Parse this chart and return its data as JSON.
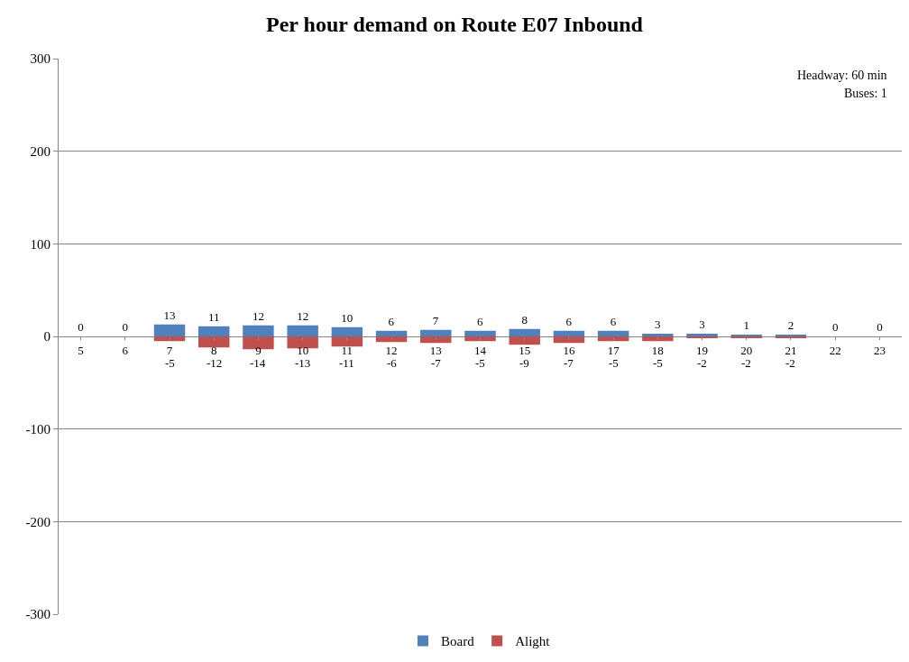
{
  "chart_data": {
    "type": "bar",
    "title": "Per hour demand on Route E07 Inbound",
    "categories": [
      "5",
      "6",
      "7",
      "8",
      "9",
      "10",
      "11",
      "12",
      "13",
      "14",
      "15",
      "16",
      "17",
      "18",
      "19",
      "20",
      "21",
      "22",
      "23"
    ],
    "series": [
      {
        "name": "Board",
        "color": "#4f81bd",
        "values": [
          0,
          0,
          13,
          11,
          12,
          12,
          10,
          6,
          7,
          6,
          8,
          6,
          6,
          3,
          3,
          1,
          2,
          0,
          0
        ],
        "value_labels": [
          "0",
          "0",
          "13",
          "11",
          "12",
          "12",
          "10",
          "6",
          "7",
          "6",
          "8",
          "6",
          "6",
          "3",
          "3",
          "1",
          "2",
          "0",
          "0"
        ]
      },
      {
        "name": "Alight",
        "color": "#c0504d",
        "values": [
          null,
          null,
          -5,
          -12,
          -14,
          -13,
          -11,
          -6,
          -7,
          -5,
          -9,
          -7,
          -5,
          -5,
          -2,
          -2,
          -2,
          null,
          null
        ],
        "value_labels": [
          null,
          null,
          "-5",
          "-12",
          "-14",
          "-13",
          "-11",
          "-6",
          "-7",
          "-5",
          "-9",
          "-7",
          "-5",
          "-5",
          "-2",
          "-2",
          "-2",
          null,
          null
        ]
      }
    ],
    "stacked": true,
    "ylim": [
      -300,
      300
    ],
    "yticks": [
      -300,
      -200,
      -100,
      0,
      100,
      200,
      300
    ],
    "grid": "y",
    "legend": "bottom",
    "annotations": [
      "Headway: 60 min",
      "Buses: 1"
    ]
  }
}
